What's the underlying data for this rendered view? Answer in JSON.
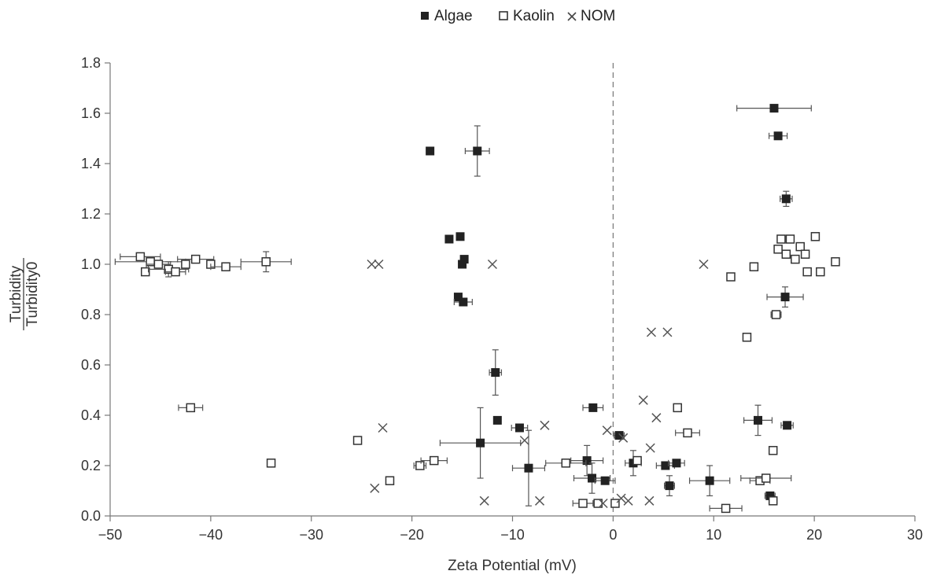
{
  "chart_data": {
    "type": "scatter",
    "xlabel": "Zeta Potential (mV)",
    "ylabel_numerator": "Turbidity",
    "ylabel_denominator": "Turbidity0",
    "xlim": [
      -50,
      30
    ],
    "ylim": [
      0,
      1.8
    ],
    "xticks": [
      -50,
      -40,
      -30,
      -20,
      -10,
      0,
      10,
      20,
      30
    ],
    "yticks": [
      0.0,
      0.2,
      0.4,
      0.6,
      0.8,
      1.0,
      1.2,
      1.4,
      1.6,
      1.8
    ],
    "ytick_labels": [
      "0.0",
      "0.2",
      "0.4",
      "0.6",
      "0.8",
      "1.0",
      "1.2",
      "1.4",
      "1.6",
      "1.8"
    ],
    "reference_line_x": 0,
    "legend_position": "top-center",
    "series": [
      {
        "name": "Algae",
        "marker": "filled-square",
        "color": "#222222",
        "points": [
          {
            "x": -18.2,
            "y": 1.45
          },
          {
            "x": -13.5,
            "y": 1.45,
            "xerr": 1.2,
            "yerr": 0.1
          },
          {
            "x": -16.3,
            "y": 1.1
          },
          {
            "x": -15.2,
            "y": 1.11
          },
          {
            "x": -14.8,
            "y": 1.02
          },
          {
            "x": -15.0,
            "y": 1.0
          },
          {
            "x": -15.4,
            "y": 0.87
          },
          {
            "x": -14.9,
            "y": 0.85,
            "xerr": 0.9
          },
          {
            "x": -11.7,
            "y": 0.57,
            "xerr": 0.6,
            "yerr": 0.09
          },
          {
            "x": -11.5,
            "y": 0.38
          },
          {
            "x": -9.3,
            "y": 0.35,
            "xerr": 0.8
          },
          {
            "x": -13.2,
            "y": 0.29,
            "xerr": 4.0,
            "yerr": 0.14
          },
          {
            "x": -8.4,
            "y": 0.19,
            "xerr": 1.6,
            "yerr": 0.15
          },
          {
            "x": -2.0,
            "y": 0.43,
            "xerr": 1.0
          },
          {
            "x": -2.6,
            "y": 0.22,
            "xerr": 1.6,
            "yerr": 0.06
          },
          {
            "x": -2.1,
            "y": 0.15,
            "xerr": 1.8,
            "yerr": 0.06
          },
          {
            "x": -0.8,
            "y": 0.14,
            "xerr": 1.0
          },
          {
            "x": 0.6,
            "y": 0.32,
            "xerr": 0.5
          },
          {
            "x": 2.0,
            "y": 0.21,
            "xerr": 0.8,
            "yerr": 0.05
          },
          {
            "x": 5.2,
            "y": 0.2,
            "xerr": 0.9
          },
          {
            "x": 5.6,
            "y": 0.12,
            "xerr": 0.5,
            "yerr": 0.04
          },
          {
            "x": 6.3,
            "y": 0.21,
            "xerr": 0.8
          },
          {
            "x": 9.6,
            "y": 0.14,
            "xerr": 2.0,
            "yerr": 0.06
          },
          {
            "x": 14.4,
            "y": 0.38,
            "xerr": 1.4,
            "yerr": 0.06
          },
          {
            "x": 15.6,
            "y": 0.08,
            "xerr": 0.5
          },
          {
            "x": 17.3,
            "y": 0.36,
            "xerr": 0.6
          },
          {
            "x": 16.0,
            "y": 1.62,
            "xerr": 3.7
          },
          {
            "x": 16.4,
            "y": 1.51,
            "xerr": 0.9
          },
          {
            "x": 17.2,
            "y": 1.26,
            "xerr": 0.6,
            "yerr": 0.03
          },
          {
            "x": 17.1,
            "y": 0.87,
            "xerr": 1.8,
            "yerr": 0.04
          }
        ]
      },
      {
        "name": "Kaolin",
        "marker": "open-square",
        "color": "#333333",
        "points": [
          {
            "x": -47.0,
            "y": 1.03,
            "xerr": 2.0
          },
          {
            "x": -46.0,
            "y": 1.01,
            "xerr": 3.5
          },
          {
            "x": -46.5,
            "y": 0.97
          },
          {
            "x": -45.2,
            "y": 1.0,
            "xerr": 1.2
          },
          {
            "x": -44.2,
            "y": 0.98,
            "xerr": 2.0,
            "yerr": 0.03
          },
          {
            "x": -43.5,
            "y": 0.97,
            "xerr": 1.0
          },
          {
            "x": -42.5,
            "y": 1.0
          },
          {
            "x": -41.5,
            "y": 1.02,
            "xerr": 1.8
          },
          {
            "x": -40.0,
            "y": 1.0
          },
          {
            "x": -38.5,
            "y": 0.99,
            "xerr": 1.5
          },
          {
            "x": -34.5,
            "y": 1.01,
            "xerr": 2.5,
            "yerr": 0.04
          },
          {
            "x": -42.0,
            "y": 0.43,
            "xerr": 1.2
          },
          {
            "x": -34.0,
            "y": 0.21
          },
          {
            "x": -25.4,
            "y": 0.3
          },
          {
            "x": -22.2,
            "y": 0.14
          },
          {
            "x": -19.2,
            "y": 0.2,
            "xerr": 0.6
          },
          {
            "x": -17.8,
            "y": 0.22,
            "xerr": 1.3
          },
          {
            "x": -4.7,
            "y": 0.21,
            "xerr": 2.0
          },
          {
            "x": -3.0,
            "y": 0.05,
            "xerr": 1.0
          },
          {
            "x": -1.5,
            "y": 0.05
          },
          {
            "x": 0.2,
            "y": 0.05
          },
          {
            "x": 2.4,
            "y": 0.22
          },
          {
            "x": 6.4,
            "y": 0.43
          },
          {
            "x": 7.4,
            "y": 0.33,
            "xerr": 1.2
          },
          {
            "x": 11.2,
            "y": 0.03,
            "xerr": 1.6
          },
          {
            "x": 11.7,
            "y": 0.95
          },
          {
            "x": 14.0,
            "y": 0.99
          },
          {
            "x": 13.3,
            "y": 0.71
          },
          {
            "x": 14.6,
            "y": 0.14,
            "xerr": 1.0
          },
          {
            "x": 15.2,
            "y": 0.15,
            "xerr": 2.5
          },
          {
            "x": 15.9,
            "y": 0.26
          },
          {
            "x": 15.9,
            "y": 0.06
          },
          {
            "x": 16.2,
            "y": 0.8,
            "xerr": 0.5
          },
          {
            "x": 16.4,
            "y": 1.06
          },
          {
            "x": 16.7,
            "y": 1.1
          },
          {
            "x": 17.2,
            "y": 1.04
          },
          {
            "x": 17.6,
            "y": 1.1
          },
          {
            "x": 18.1,
            "y": 1.02
          },
          {
            "x": 18.6,
            "y": 1.07
          },
          {
            "x": 19.1,
            "y": 1.04
          },
          {
            "x": 19.3,
            "y": 0.97
          },
          {
            "x": 20.1,
            "y": 1.11
          },
          {
            "x": 20.6,
            "y": 0.97
          },
          {
            "x": 22.1,
            "y": 1.01
          }
        ]
      },
      {
        "name": "NOM",
        "marker": "cross",
        "color": "#555555",
        "points": [
          {
            "x": -24.0,
            "y": 1.0
          },
          {
            "x": -23.3,
            "y": 1.0
          },
          {
            "x": -12.0,
            "y": 1.0
          },
          {
            "x": -22.9,
            "y": 0.35
          },
          {
            "x": -23.7,
            "y": 0.11
          },
          {
            "x": -12.8,
            "y": 0.06
          },
          {
            "x": -7.3,
            "y": 0.06
          },
          {
            "x": -6.8,
            "y": 0.36
          },
          {
            "x": -8.8,
            "y": 0.3
          },
          {
            "x": -0.6,
            "y": 0.34
          },
          {
            "x": 1.0,
            "y": 0.31
          },
          {
            "x": 3.0,
            "y": 0.46
          },
          {
            "x": 3.7,
            "y": 0.27
          },
          {
            "x": 4.3,
            "y": 0.39
          },
          {
            "x": 3.8,
            "y": 0.73
          },
          {
            "x": 5.4,
            "y": 0.73
          },
          {
            "x": 3.6,
            "y": 0.06
          },
          {
            "x": 1.5,
            "y": 0.06
          },
          {
            "x": 0.8,
            "y": 0.07
          },
          {
            "x": -1.0,
            "y": 0.05
          },
          {
            "x": 9.0,
            "y": 1.0
          }
        ]
      }
    ]
  }
}
